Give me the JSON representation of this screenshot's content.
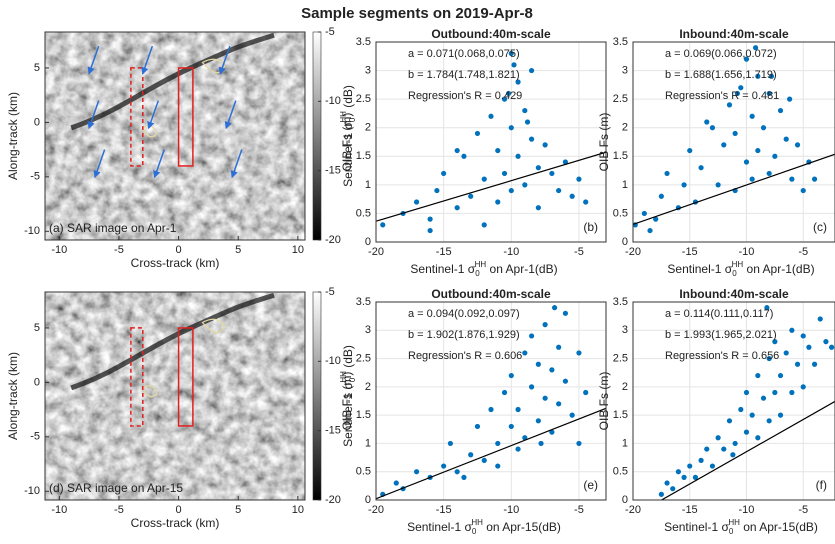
{
  "title": "Sample segments on 2019-Apr-8",
  "chart_data": [
    {
      "type": "image",
      "caption": "(a) SAR image on Apr-1",
      "xlabel": "Cross-track (km)",
      "ylabel": "Along-track (km)",
      "xlim": [
        -11.2,
        10.6
      ],
      "ylim": [
        -10.8,
        8.3
      ],
      "xticks": [
        -10,
        -5,
        0,
        5,
        10
      ],
      "yticks": [
        -10,
        -5,
        0,
        5
      ],
      "colorbar": {
        "label": {
          "text": "Sentinel-1 σ",
          "sub": "0",
          "sup": "HH",
          "tail": " (dB)"
        },
        "lim": [
          -20,
          -5
        ],
        "ticks": [
          -20,
          -15,
          -10,
          -5
        ]
      }
    },
    {
      "type": "scatter",
      "title": "Outbound:40m-scale",
      "panel_label": "(b)",
      "color": "#0072bd",
      "xlabel": {
        "text": "Sentinel-1 σ",
        "sub": "0",
        "sup": "HH",
        "tail": " on Apr-1(dB)"
      },
      "ylabel": "OIB Fs (m)",
      "xlim": [
        -20,
        -3
      ],
      "ylim": [
        0,
        3.5
      ],
      "xticks": [
        -20,
        -15,
        -10,
        -5
      ],
      "yticks": [
        0,
        0.5,
        1,
        1.5,
        2,
        2.5,
        3,
        3.5
      ],
      "grid": true,
      "fit_a": {
        "value": 0.071,
        "label": "a = 0.071(0.068,0.075)"
      },
      "fit_b": {
        "value": 1.784,
        "label": "b = 1.784(1.748,1.821)"
      },
      "fit_r": {
        "value": 0.429,
        "label": "Regression's R = 0.429"
      },
      "x": [
        -19.5,
        -18,
        -17,
        -16,
        -15.5,
        -15,
        -14,
        -13.5,
        -13,
        -12.5,
        -12,
        -11.5,
        -11,
        -11,
        -10.5,
        -10.5,
        -10,
        -10,
        -10,
        -9.5,
        -9.5,
        -9,
        -9,
        -8.5,
        -8.5,
        -8,
        -8,
        -7.5,
        -7,
        -6.5,
        -6,
        -5.5,
        -5,
        -4.5,
        -12,
        -14,
        -16,
        -9.8,
        -10.2,
        -8.8
      ],
      "y": [
        0.3,
        0.5,
        0.7,
        0.4,
        0.9,
        1.2,
        0.6,
        1.5,
        0.8,
        1.9,
        1.1,
        2.2,
        0.7,
        1.6,
        2.5,
        1.2,
        3.3,
        2.0,
        0.9,
        2.8,
        1.5,
        2.3,
        1.0,
        1.8,
        3.0,
        1.3,
        0.6,
        1.7,
        1.2,
        0.9,
        1.4,
        0.8,
        1.1,
        0.7,
        0.3,
        1.6,
        0.2,
        3.1,
        2.6,
        2.1
      ]
    },
    {
      "type": "scatter",
      "title": "Inbound:40m-scale",
      "panel_label": "(c)",
      "color": "#0072bd",
      "xlabel": {
        "text": "Sentinel-1 σ",
        "sub": "0",
        "sup": "HH",
        "tail": " on Apr-1(dB)"
      },
      "ylabel": "OIB Fs (m)",
      "xlim": [
        -20,
        -2.2
      ],
      "ylim": [
        0,
        3.5
      ],
      "xticks": [
        -20,
        -15,
        -10,
        -5
      ],
      "yticks": [
        0,
        0.5,
        1,
        1.5,
        2,
        2.5,
        3,
        3.5
      ],
      "grid": true,
      "fit_a": {
        "value": 0.069,
        "label": "a = 0.069(0.066,0.072)"
      },
      "fit_b": {
        "value": 1.688,
        "label": "b = 1.688(1.656,1.719)"
      },
      "fit_r": {
        "value": 0.481,
        "label": "Regression's R = 0.481"
      },
      "x": [
        -19.8,
        -19,
        -18,
        -17.5,
        -17,
        -16,
        -15.5,
        -15,
        -14.5,
        -14,
        -13,
        -12.5,
        -12,
        -11.5,
        -11,
        -11,
        -10.5,
        -10,
        -10,
        -9.5,
        -9.5,
        -9,
        -9,
        -8.5,
        -8,
        -8,
        -7.5,
        -7,
        -6.5,
        -6,
        -5.5,
        -5,
        -4.5,
        -4,
        -18.5,
        -13.5,
        -10.8,
        -9.2,
        -7.8,
        -6.2
      ],
      "y": [
        0.3,
        0.5,
        0.4,
        0.8,
        1.2,
        0.6,
        1.0,
        1.6,
        0.7,
        1.3,
        2.0,
        1.0,
        1.7,
        2.4,
        0.9,
        1.9,
        2.7,
        1.4,
        3.2,
        2.2,
        1.1,
        2.9,
        1.6,
        2.0,
        1.2,
        2.6,
        1.5,
        2.3,
        1.8,
        1.1,
        1.7,
        0.9,
        1.4,
        1.1,
        0.2,
        2.1,
        2.6,
        3.4,
        2.9,
        2.5
      ]
    },
    {
      "type": "image",
      "caption": "(d) SAR image on Apr-15",
      "xlabel": "Cross-track (km)",
      "ylabel": "Along-track (km)",
      "xlim": [
        -11.2,
        10.6
      ],
      "ylim": [
        -10.8,
        8.3
      ],
      "xticks": [
        -10,
        -5,
        0,
        5,
        10
      ],
      "yticks": [
        -10,
        -5,
        0,
        5
      ],
      "colorbar": {
        "label": {
          "text": "Sentinel-1 σ",
          "sub": "0",
          "sup": "HH",
          "tail": " (dB)"
        },
        "lim": [
          -20,
          -5
        ],
        "ticks": [
          -20,
          -15,
          -10,
          -5
        ]
      }
    },
    {
      "type": "scatter",
      "title": "Outbound:40m-scale",
      "panel_label": "(e)",
      "color": "#0072bd",
      "xlabel": {
        "text": "Sentinel-1 σ",
        "sub": "0",
        "sup": "HH",
        "tail": " on Apr-15(dB)"
      },
      "ylabel": "OIB Fs (m)",
      "xlim": [
        -20,
        -3
      ],
      "ylim": [
        0,
        3.5
      ],
      "xticks": [
        -20,
        -15,
        -10,
        -5
      ],
      "yticks": [
        0,
        0.5,
        1,
        1.5,
        2,
        2.5,
        3,
        3.5
      ],
      "grid": true,
      "fit_a": {
        "value": 0.094,
        "label": "a = 0.094(0.092,0.097)"
      },
      "fit_b": {
        "value": 1.902,
        "label": "b = 1.902(1.876,1.929)"
      },
      "fit_r": {
        "value": 0.606,
        "label": "Regression's R = 0.606"
      },
      "x": [
        -19.5,
        -18.5,
        -18,
        -17,
        -16,
        -15,
        -14.5,
        -14,
        -13,
        -12.5,
        -12,
        -11.5,
        -11,
        -10.5,
        -10,
        -10,
        -9.5,
        -9,
        -9,
        -8.5,
        -8.5,
        -8,
        -8,
        -7.5,
        -7.5,
        -7,
        -7,
        -6.5,
        -6.5,
        -6,
        -6,
        -5.5,
        -5,
        -5,
        -4.5,
        -13.5,
        -11,
        -9.5,
        -7.8,
        -6.8
      ],
      "y": [
        0.1,
        0.3,
        0.2,
        0.5,
        0.4,
        0.6,
        1.0,
        0.5,
        0.8,
        1.3,
        0.7,
        1.6,
        1.0,
        1.9,
        1.3,
        2.2,
        1.6,
        2.6,
        1.1,
        2.0,
        2.9,
        1.4,
        2.4,
        3.1,
        1.8,
        2.3,
        1.2,
        2.7,
        1.7,
        2.1,
        3.3,
        1.5,
        2.6,
        1.0,
        1.9,
        0.4,
        0.6,
        0.9,
        1.0,
        3.4
      ]
    },
    {
      "type": "scatter",
      "title": "Inbound:40m-scale",
      "panel_label": "(f)",
      "color": "#0072bd",
      "xlabel": {
        "text": "Sentinel-1 σ",
        "sub": "0",
        "sup": "HH",
        "tail": " on Apr-15(dB)"
      },
      "ylabel": "OIB Fs (m)",
      "xlim": [
        -20,
        -2.2
      ],
      "ylim": [
        0,
        3.5
      ],
      "xticks": [
        -20,
        -15,
        -10,
        -5
      ],
      "yticks": [
        0,
        0.5,
        1,
        1.5,
        2,
        2.5,
        3,
        3.5
      ],
      "grid": true,
      "fit_a": {
        "value": 0.114,
        "label": "a = 0.114(0.111,0.117)"
      },
      "fit_b": {
        "value": 1.993,
        "label": "b = 1.993(1.965,2.021)"
      },
      "fit_r": {
        "value": 0.656,
        "label": "Regression's R = 0.656"
      },
      "x": [
        -17.5,
        -17,
        -16.5,
        -16,
        -15.5,
        -15,
        -14,
        -13.5,
        -13,
        -12.5,
        -12,
        -11.5,
        -11,
        -10.5,
        -10,
        -10,
        -9.5,
        -9,
        -9,
        -8.5,
        -8,
        -8,
        -7.5,
        -7.5,
        -7,
        -7,
        -6.5,
        -6,
        -6,
        -5.5,
        -5,
        -5,
        -4.5,
        -4,
        -3.5,
        -3,
        -2.5,
        -14.5,
        -11.2,
        -8.2
      ],
      "y": [
        0.1,
        0.3,
        0.2,
        0.5,
        0.4,
        0.6,
        0.7,
        0.9,
        0.6,
        1.1,
        0.9,
        1.4,
        1.0,
        1.6,
        1.2,
        1.9,
        1.5,
        2.2,
        1.1,
        1.8,
        2.5,
        1.4,
        2.8,
        1.9,
        2.2,
        1.5,
        2.6,
        3.0,
        1.9,
        2.4,
        2.9,
        2.0,
        2.7,
        2.4,
        3.2,
        2.8,
        2.7,
        0.4,
        0.8,
        3.4
      ]
    }
  ]
}
